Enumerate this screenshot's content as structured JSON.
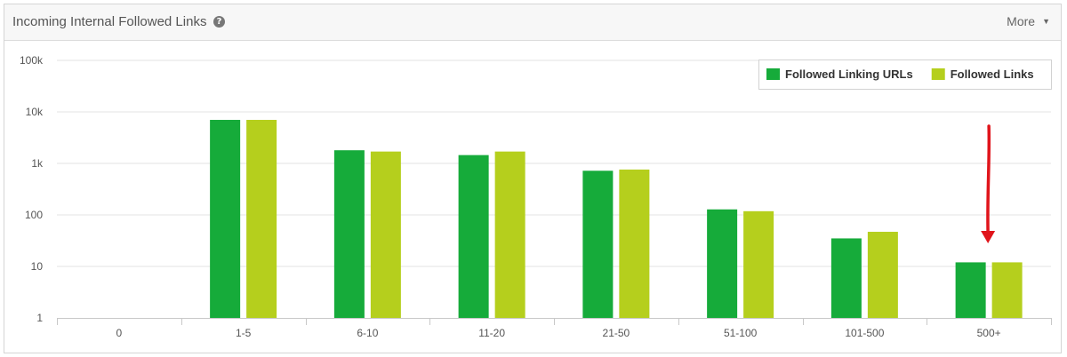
{
  "header": {
    "title": "Incoming Internal Followed Links",
    "more_label": "More"
  },
  "chart_data": {
    "type": "bar",
    "yscale": "log",
    "ylim": [
      1,
      100000
    ],
    "yticks": [
      "1",
      "10",
      "100",
      "1k",
      "10k",
      "100k"
    ],
    "categories": [
      "0",
      "1-5",
      "6-10",
      "11-20",
      "21-50",
      "51-100",
      "101-500",
      "500+"
    ],
    "series": [
      {
        "name": "Followed Linking URLs",
        "color": "#16ab3a",
        "values": [
          null,
          7000,
          1800,
          1450,
          720,
          128,
          35,
          12
        ]
      },
      {
        "name": "Followed Links",
        "color": "#b5cf1d",
        "values": [
          null,
          7000,
          1700,
          1700,
          760,
          118,
          47,
          12
        ]
      }
    ],
    "legend_position": "top-right",
    "grid": true,
    "annotation_color": "#e0141b"
  }
}
